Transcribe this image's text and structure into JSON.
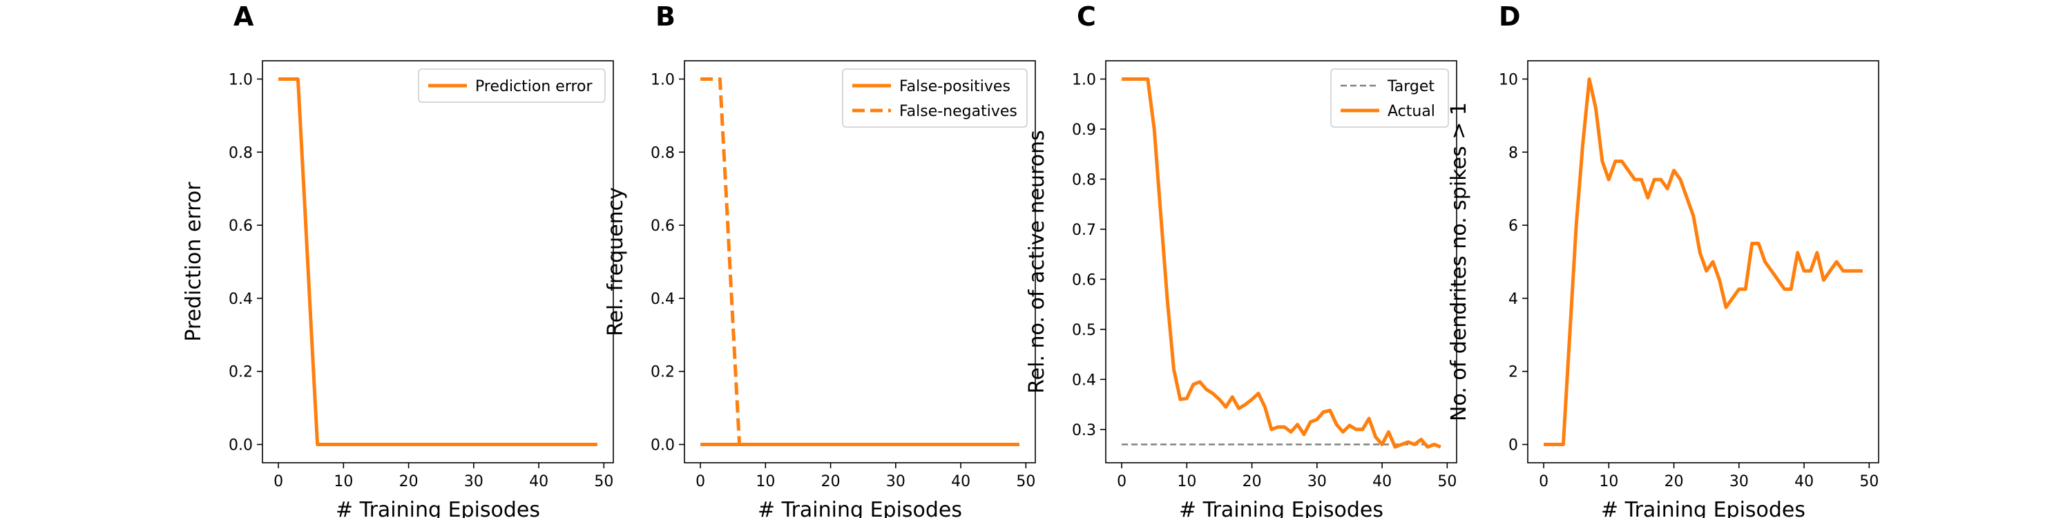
{
  "chart_data": [
    {
      "type": "line",
      "panel_label": "A",
      "title": "",
      "xlabel": "# Training Episodes",
      "ylabel": "Prediction error",
      "xlim": [
        -2.45,
        51.45
      ],
      "ylim": [
        -0.05,
        1.05
      ],
      "xticks": [
        0,
        10,
        20,
        30,
        40,
        50
      ],
      "yticks": [
        0.0,
        0.2,
        0.4,
        0.6,
        0.8,
        1.0
      ],
      "ytick_labels": [
        "0.0",
        "0.2",
        "0.4",
        "0.6",
        "0.8",
        "1.0"
      ],
      "grid": false,
      "legend_position": "top-right",
      "x": [
        0,
        1,
        2,
        3,
        4,
        5,
        6,
        7,
        8,
        9,
        10,
        11,
        12,
        13,
        14,
        15,
        16,
        17,
        18,
        19,
        20,
        21,
        22,
        23,
        24,
        25,
        26,
        27,
        28,
        29,
        30,
        31,
        32,
        33,
        34,
        35,
        36,
        37,
        38,
        39,
        40,
        41,
        42,
        43,
        44,
        45,
        46,
        47,
        48,
        49
      ],
      "series": [
        {
          "name": "Prediction error",
          "color": "#ff7f0e",
          "style": "solid",
          "values": [
            1,
            1,
            1,
            1,
            0.67,
            0.33,
            0,
            0,
            0,
            0,
            0,
            0,
            0,
            0,
            0,
            0,
            0,
            0,
            0,
            0,
            0,
            0,
            0,
            0,
            0,
            0,
            0,
            0,
            0,
            0,
            0,
            0,
            0,
            0,
            0,
            0,
            0,
            0,
            0,
            0,
            0,
            0,
            0,
            0,
            0,
            0,
            0,
            0,
            0,
            0
          ]
        }
      ]
    },
    {
      "type": "line",
      "panel_label": "B",
      "title": "",
      "xlabel": "# Training Episodes",
      "ylabel": "Rel. frequency",
      "xlim": [
        -2.45,
        51.45
      ],
      "ylim": [
        -0.05,
        1.05
      ],
      "xticks": [
        0,
        10,
        20,
        30,
        40,
        50
      ],
      "yticks": [
        0.0,
        0.2,
        0.4,
        0.6,
        0.8,
        1.0
      ],
      "ytick_labels": [
        "0.0",
        "0.2",
        "0.4",
        "0.6",
        "0.8",
        "1.0"
      ],
      "grid": false,
      "legend_position": "top-right",
      "x": [
        0,
        1,
        2,
        3,
        4,
        5,
        6,
        7,
        8,
        9,
        10,
        11,
        12,
        13,
        14,
        15,
        16,
        17,
        18,
        19,
        20,
        21,
        22,
        23,
        24,
        25,
        26,
        27,
        28,
        29,
        30,
        31,
        32,
        33,
        34,
        35,
        36,
        37,
        38,
        39,
        40,
        41,
        42,
        43,
        44,
        45,
        46,
        47,
        48,
        49
      ],
      "series": [
        {
          "name": "False-positives",
          "color": "#ff7f0e",
          "style": "solid",
          "values": [
            0,
            0,
            0,
            0,
            0,
            0,
            0,
            0,
            0,
            0,
            0,
            0,
            0,
            0,
            0,
            0,
            0,
            0,
            0,
            0,
            0,
            0,
            0,
            0,
            0,
            0,
            0,
            0,
            0,
            0,
            0,
            0,
            0,
            0,
            0,
            0,
            0,
            0,
            0,
            0,
            0,
            0,
            0,
            0,
            0,
            0,
            0,
            0,
            0,
            0
          ]
        },
        {
          "name": "False-negatives",
          "color": "#ff7f0e",
          "style": "dashed",
          "values": [
            1,
            1,
            1,
            1,
            0.67,
            0.33,
            0,
            0,
            0,
            0,
            0,
            0,
            0,
            0,
            0,
            0,
            0,
            0,
            0,
            0,
            0,
            0,
            0,
            0,
            0,
            0,
            0,
            0,
            0,
            0,
            0,
            0,
            0,
            0,
            0,
            0,
            0,
            0,
            0,
            0,
            0,
            0,
            0,
            0,
            0,
            0,
            0,
            0,
            0,
            0
          ]
        }
      ]
    },
    {
      "type": "line",
      "panel_label": "C",
      "title": "",
      "xlabel": "# Training Episodes",
      "ylabel": "Rel. no. of active neurons",
      "xlim": [
        -2.45,
        51.45
      ],
      "ylim": [
        0.2335,
        1.0365
      ],
      "xticks": [
        0,
        10,
        20,
        30,
        40,
        50
      ],
      "yticks": [
        0.3,
        0.4,
        0.5,
        0.6,
        0.7,
        0.8,
        0.9,
        1.0
      ],
      "ytick_labels": [
        "0.3",
        "0.4",
        "0.5",
        "0.6",
        "0.7",
        "0.8",
        "0.9",
        "1.0"
      ],
      "grid": false,
      "legend_position": "top-right",
      "x": [
        0,
        1,
        2,
        3,
        4,
        5,
        6,
        7,
        8,
        9,
        10,
        11,
        12,
        13,
        14,
        15,
        16,
        17,
        18,
        19,
        20,
        21,
        22,
        23,
        24,
        25,
        26,
        27,
        28,
        29,
        30,
        31,
        32,
        33,
        34,
        35,
        36,
        37,
        38,
        39,
        40,
        41,
        42,
        43,
        44,
        45,
        46,
        47,
        48,
        49
      ],
      "series": [
        {
          "name": "Target",
          "color": "#808080",
          "style": "dashed",
          "values": [
            0.27,
            0.27,
            0.27,
            0.27,
            0.27,
            0.27,
            0.27,
            0.27,
            0.27,
            0.27,
            0.27,
            0.27,
            0.27,
            0.27,
            0.27,
            0.27,
            0.27,
            0.27,
            0.27,
            0.27,
            0.27,
            0.27,
            0.27,
            0.27,
            0.27,
            0.27,
            0.27,
            0.27,
            0.27,
            0.27,
            0.27,
            0.27,
            0.27,
            0.27,
            0.27,
            0.27,
            0.27,
            0.27,
            0.27,
            0.27,
            0.27,
            0.27,
            0.27,
            0.27,
            0.27,
            0.27,
            0.27,
            0.27,
            0.27,
            0.27
          ]
        },
        {
          "name": "Actual",
          "color": "#ff7f0e",
          "style": "solid",
          "values": [
            1.0,
            1.0,
            1.0,
            1.0,
            1.0,
            0.9,
            0.73,
            0.56,
            0.42,
            0.36,
            0.362,
            0.39,
            0.395,
            0.38,
            0.372,
            0.36,
            0.345,
            0.365,
            0.342,
            0.35,
            0.36,
            0.372,
            0.345,
            0.3,
            0.305,
            0.305,
            0.295,
            0.31,
            0.29,
            0.315,
            0.32,
            0.335,
            0.338,
            0.31,
            0.295,
            0.308,
            0.3,
            0.3,
            0.322,
            0.285,
            0.27,
            0.295,
            0.265,
            0.27,
            0.275,
            0.27,
            0.28,
            0.265,
            0.27,
            0.265
          ]
        }
      ]
    },
    {
      "type": "line",
      "panel_label": "D",
      "title": "",
      "xlabel": "# Training Episodes",
      "ylabel": "No. of dendrites no. spikes > 1",
      "xlim": [
        -2.45,
        51.45
      ],
      "ylim": [
        -0.5,
        10.5
      ],
      "xticks": [
        0,
        10,
        20,
        30,
        40,
        50
      ],
      "yticks": [
        0,
        2,
        4,
        6,
        8,
        10
      ],
      "ytick_labels": [
        "0",
        "2",
        "4",
        "6",
        "8",
        "10"
      ],
      "grid": false,
      "legend_position": "none",
      "x": [
        0,
        1,
        2,
        3,
        4,
        5,
        6,
        7,
        8,
        9,
        10,
        11,
        12,
        13,
        14,
        15,
        16,
        17,
        18,
        19,
        20,
        21,
        22,
        23,
        24,
        25,
        26,
        27,
        28,
        29,
        30,
        31,
        32,
        33,
        34,
        35,
        36,
        37,
        38,
        39,
        40,
        41,
        42,
        43,
        44,
        45,
        46,
        47,
        48,
        49
      ],
      "series": [
        {
          "name": "",
          "color": "#ff7f0e",
          "style": "solid",
          "values": [
            0,
            0,
            0,
            0,
            3,
            6,
            8.2,
            10,
            9.2,
            7.75,
            7.25,
            7.75,
            7.75,
            7.5,
            7.25,
            7.25,
            6.75,
            7.25,
            7.25,
            7.0,
            7.5,
            7.25,
            6.75,
            6.25,
            5.25,
            4.75,
            5.0,
            4.5,
            3.75,
            4.0,
            4.25,
            4.25,
            5.5,
            5.5,
            5.0,
            4.75,
            4.5,
            4.25,
            4.25,
            5.25,
            4.75,
            4.75,
            5.25,
            4.5,
            4.75,
            5.0,
            4.75,
            4.75,
            4.75,
            4.75
          ]
        }
      ]
    }
  ]
}
